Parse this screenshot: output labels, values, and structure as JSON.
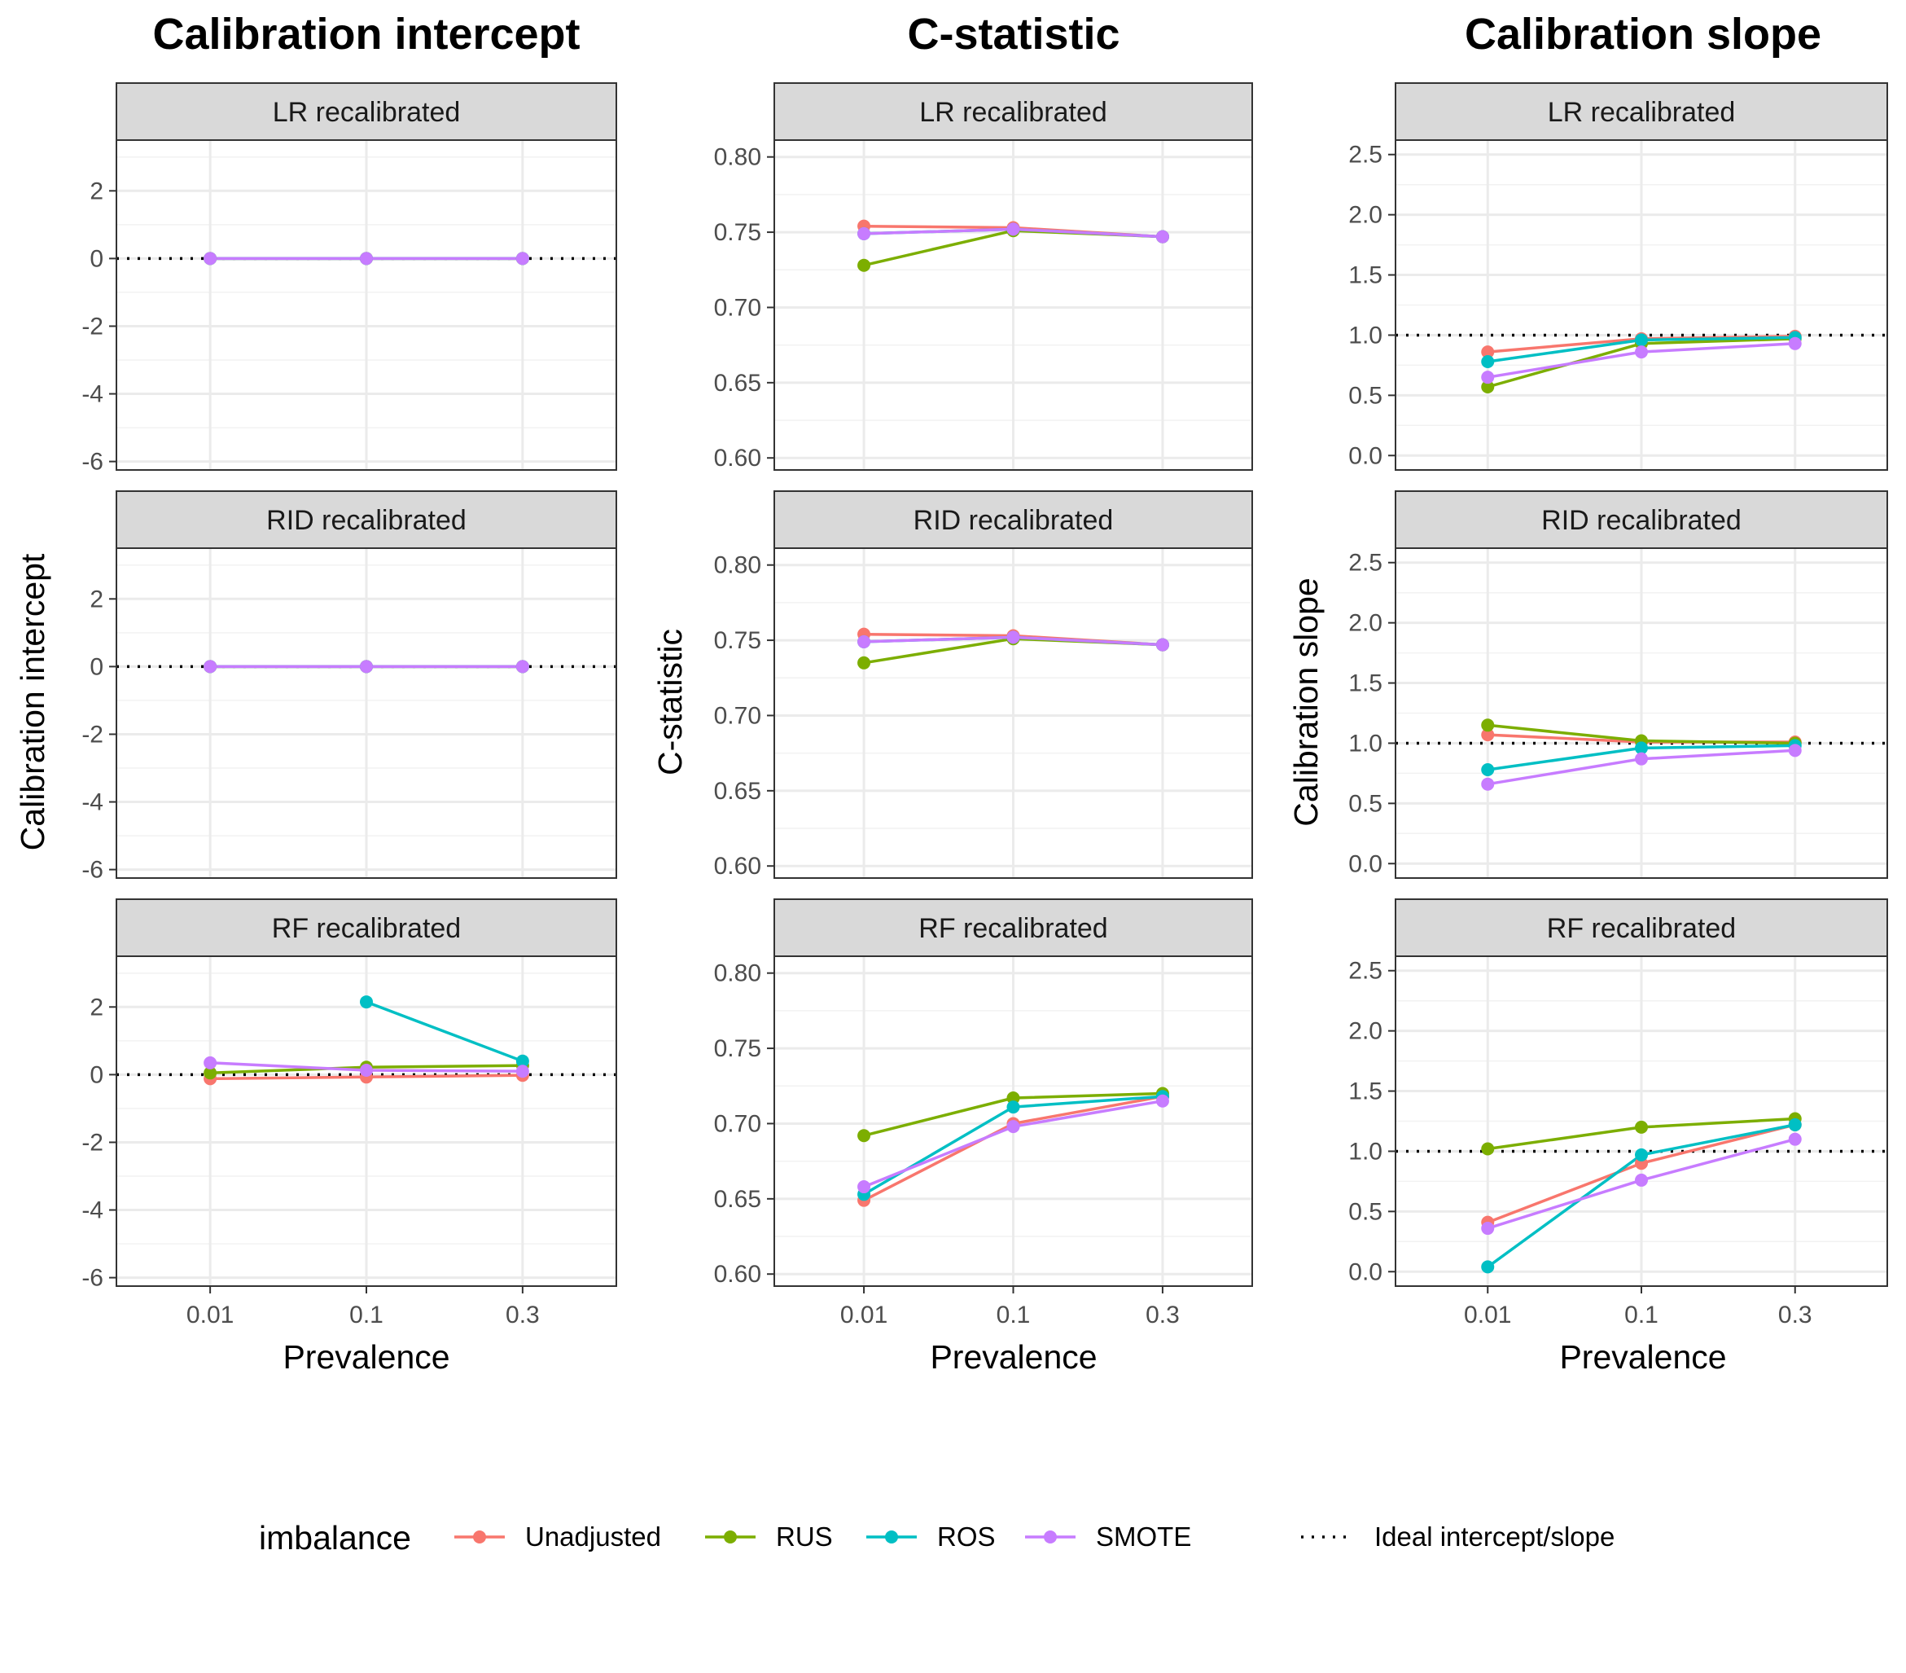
{
  "chart_data": [
    {
      "type": "line",
      "title": "Calibration intercept",
      "xlabel": "Prevalence",
      "ylabel": "Calibration intercept",
      "x": [
        "0.01",
        "0.1",
        "0.3"
      ],
      "yticks": [
        -6,
        -4,
        -2,
        0,
        2
      ],
      "ytick_labels": [
        "-6",
        "-4",
        "-2",
        "0",
        "2"
      ],
      "ylim": [
        -6.25,
        3.5
      ],
      "reference_line": 0,
      "panels": [
        {
          "strip": "LR recalibrated",
          "series": [
            {
              "name": "Unadjusted",
              "values": [
                0.0,
                0.0,
                0.0
              ]
            },
            {
              "name": "RUS",
              "values": [
                0.0,
                0.0,
                0.0
              ]
            },
            {
              "name": "ROS",
              "values": [
                0.0,
                0.0,
                0.0
              ]
            },
            {
              "name": "SMOTE",
              "values": [
                0.0,
                0.0,
                0.0
              ]
            }
          ]
        },
        {
          "strip": "RID recalibrated",
          "series": [
            {
              "name": "Unadjusted",
              "values": [
                0.0,
                0.0,
                0.0
              ]
            },
            {
              "name": "RUS",
              "values": [
                0.0,
                0.0,
                0.0
              ]
            },
            {
              "name": "ROS",
              "values": [
                0.0,
                0.0,
                0.0
              ]
            },
            {
              "name": "SMOTE",
              "values": [
                0.0,
                0.0,
                0.0
              ]
            }
          ]
        },
        {
          "strip": "RF recalibrated",
          "series": [
            {
              "name": "Unadjusted",
              "values": [
                -0.12,
                -0.07,
                -0.02
              ]
            },
            {
              "name": "RUS",
              "values": [
                0.05,
                0.22,
                0.27
              ]
            },
            {
              "name": "ROS",
              "values": [
                null,
                2.15,
                0.4
              ]
            },
            {
              "name": "SMOTE",
              "values": [
                0.35,
                0.13,
                0.1
              ]
            }
          ]
        }
      ]
    },
    {
      "type": "line",
      "title": "C-statistic",
      "xlabel": "Prevalence",
      "ylabel": "C-statistic",
      "x": [
        "0.01",
        "0.1",
        "0.3"
      ],
      "yticks": [
        0.6,
        0.65,
        0.7,
        0.75,
        0.8
      ],
      "ytick_labels": [
        "0.60",
        "0.65",
        "0.70",
        "0.75",
        "0.80"
      ],
      "ylim": [
        0.592,
        0.8112
      ],
      "panels": [
        {
          "strip": "LR recalibrated",
          "series": [
            {
              "name": "Unadjusted",
              "values": [
                0.754,
                0.753,
                0.747
              ]
            },
            {
              "name": "RUS",
              "values": [
                0.728,
                0.751,
                0.747
              ]
            },
            {
              "name": "ROS",
              "values": [
                0.749,
                0.752,
                0.747
              ]
            },
            {
              "name": "SMOTE",
              "values": [
                0.749,
                0.752,
                0.747
              ]
            }
          ]
        },
        {
          "strip": "RID recalibrated",
          "series": [
            {
              "name": "Unadjusted",
              "values": [
                0.754,
                0.753,
                0.747
              ]
            },
            {
              "name": "RUS",
              "values": [
                0.735,
                0.751,
                0.747
              ]
            },
            {
              "name": "ROS",
              "values": [
                0.749,
                0.752,
                0.747
              ]
            },
            {
              "name": "SMOTE",
              "values": [
                0.749,
                0.752,
                0.747
              ]
            }
          ]
        },
        {
          "strip": "RF recalibrated",
          "series": [
            {
              "name": "Unadjusted",
              "values": [
                0.649,
                0.7,
                0.718
              ]
            },
            {
              "name": "RUS",
              "values": [
                0.692,
                0.717,
                0.72
              ]
            },
            {
              "name": "ROS",
              "values": [
                0.653,
                0.711,
                0.718
              ]
            },
            {
              "name": "SMOTE",
              "values": [
                0.658,
                0.698,
                0.715
              ]
            }
          ]
        }
      ]
    },
    {
      "type": "line",
      "title": "Calibration slope",
      "xlabel": "Prevalence",
      "ylabel": "Calibration slope",
      "x": [
        "0.01",
        "0.1",
        "0.3"
      ],
      "yticks": [
        0.0,
        0.5,
        1.0,
        1.5,
        2.0,
        2.5
      ],
      "ytick_labels": [
        "0.0",
        "0.5",
        "1.0",
        "1.5",
        "2.0",
        "2.5"
      ],
      "ylim": [
        -0.12,
        2.62
      ],
      "reference_line": 1,
      "panels": [
        {
          "strip": "LR recalibrated",
          "series": [
            {
              "name": "Unadjusted",
              "values": [
                0.86,
                0.97,
                0.99
              ]
            },
            {
              "name": "RUS",
              "values": [
                0.57,
                0.93,
                0.97
              ]
            },
            {
              "name": "ROS",
              "values": [
                0.78,
                0.96,
                0.98
              ]
            },
            {
              "name": "SMOTE",
              "values": [
                0.65,
                0.86,
                0.93
              ]
            }
          ]
        },
        {
          "strip": "RID recalibrated",
          "series": [
            {
              "name": "Unadjusted",
              "values": [
                1.07,
                1.01,
                1.01
              ]
            },
            {
              "name": "RUS",
              "values": [
                1.15,
                1.02,
                1.0
              ]
            },
            {
              "name": "ROS",
              "values": [
                0.78,
                0.96,
                0.98
              ]
            },
            {
              "name": "SMOTE",
              "values": [
                0.66,
                0.87,
                0.94
              ]
            }
          ]
        },
        {
          "strip": "RF recalibrated",
          "series": [
            {
              "name": "Unadjusted",
              "values": [
                0.41,
                0.9,
                1.22
              ]
            },
            {
              "name": "RUS",
              "values": [
                1.02,
                1.2,
                1.27
              ]
            },
            {
              "name": "ROS",
              "values": [
                0.04,
                0.97,
                1.22
              ]
            },
            {
              "name": "SMOTE",
              "values": [
                0.36,
                0.76,
                1.1
              ]
            }
          ]
        }
      ]
    }
  ],
  "legend": {
    "title": "imbalance",
    "placement": "bottom",
    "items": [
      {
        "name": "Unadjusted",
        "color": "#F8766D"
      },
      {
        "name": "RUS",
        "color": "#7CAE00"
      },
      {
        "name": "ROS",
        "color": "#00BFC4"
      },
      {
        "name": "SMOTE",
        "color": "#C77CFF"
      }
    ],
    "reference_label": "Ideal intercept/slope"
  },
  "style": {
    "strip_fill": "#D9D9D9",
    "grid_major": "#EBEBEB",
    "grid_minor": "#F2F2F2",
    "panel_border": "#333333"
  }
}
